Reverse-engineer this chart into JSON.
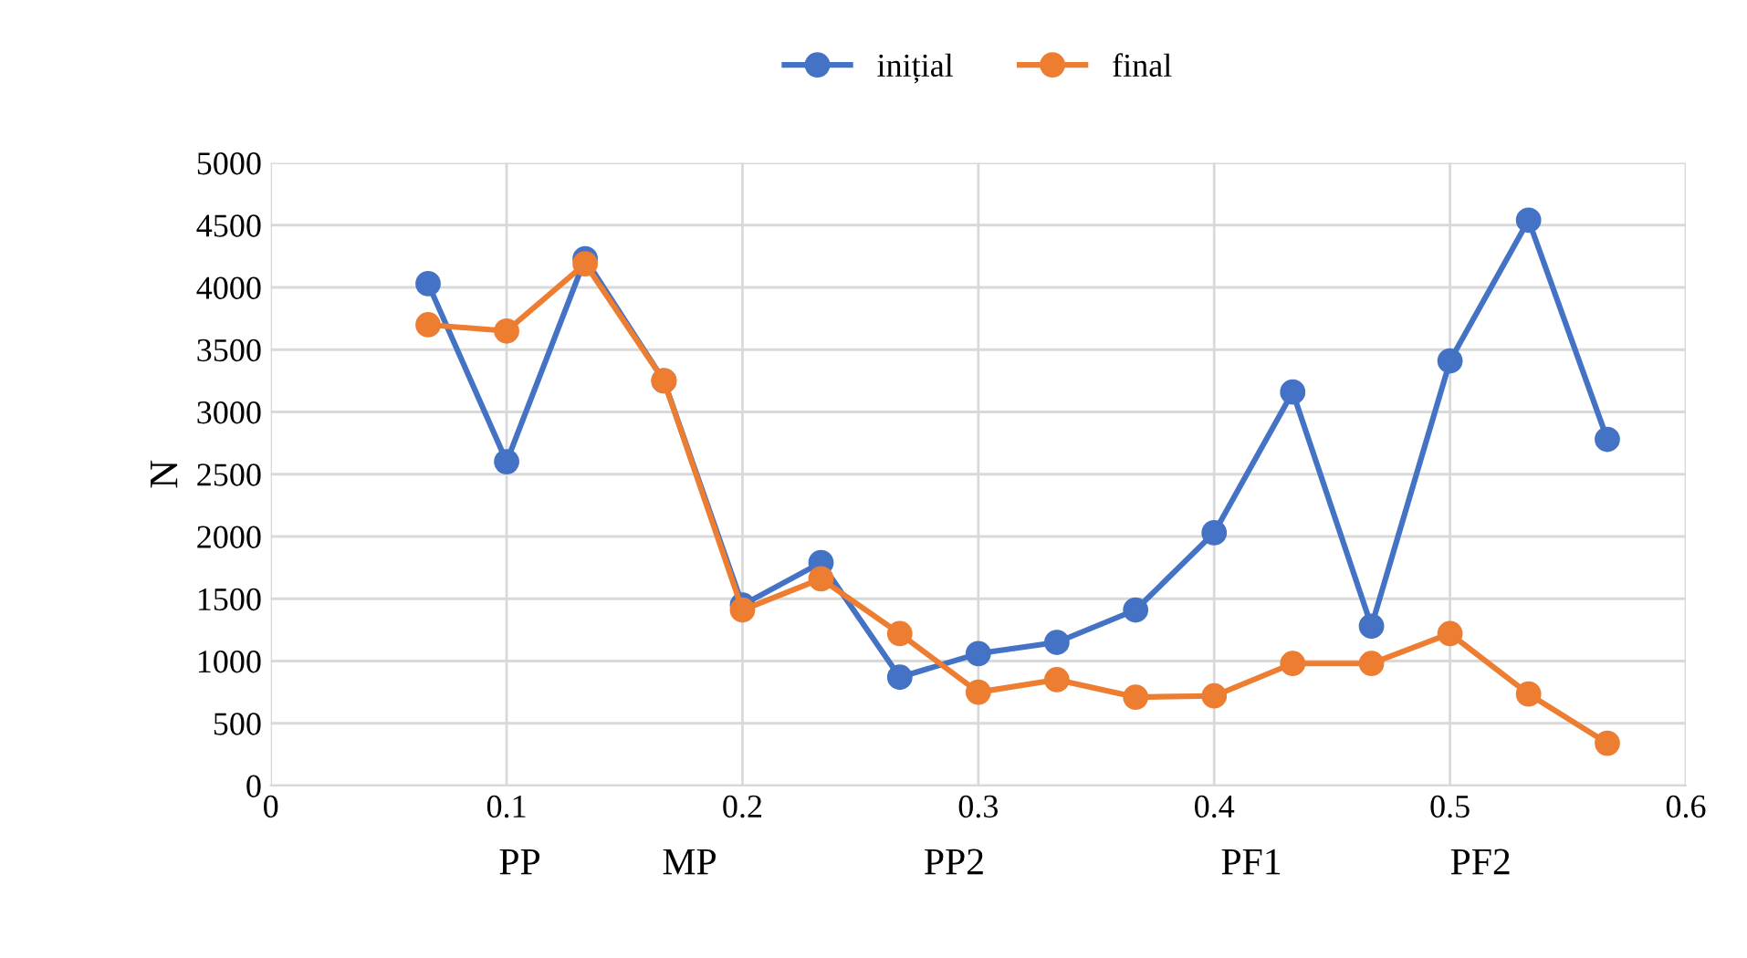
{
  "chart_data": {
    "type": "line",
    "ylabel": "N",
    "x": [
      0.0667,
      0.1,
      0.1333,
      0.1667,
      0.2,
      0.2333,
      0.2667,
      0.3,
      0.3333,
      0.3667,
      0.4,
      0.4333,
      0.4667,
      0.5,
      0.5333,
      0.5667
    ],
    "series": [
      {
        "name": "inițial",
        "color": "#4472c4",
        "values": [
          4030,
          2600,
          4230,
          3250,
          1450,
          1790,
          870,
          1060,
          1150,
          1410,
          2030,
          3160,
          1280,
          3410,
          4540,
          2780
        ]
      },
      {
        "name": "final",
        "color": "#ed7d31",
        "values": [
          3700,
          3650,
          4190,
          3250,
          1410,
          1660,
          1220,
          750,
          850,
          710,
          720,
          980,
          980,
          1220,
          735,
          340
        ]
      }
    ],
    "xlim": [
      0,
      0.6
    ],
    "xticks": [
      0,
      0.1,
      0.2,
      0.3,
      0.4,
      0.5,
      0.6
    ],
    "ylim": [
      0,
      5000
    ],
    "yticks": [
      0,
      500,
      1000,
      1500,
      2000,
      2500,
      3000,
      3500,
      4000,
      4500,
      5000
    ],
    "grid": true,
    "legend": "top",
    "marker": "circle",
    "line_style": "solid",
    "annotations": [
      "PP",
      "MP",
      "PP2",
      "PF1",
      "PF2"
    ]
  }
}
